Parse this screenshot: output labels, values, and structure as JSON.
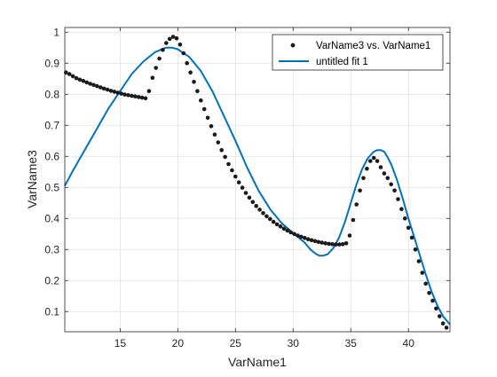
{
  "chart_data": {
    "type": "scatter",
    "title": "",
    "xlabel": "VarName1",
    "ylabel": "VarName3",
    "xlim": [
      10.2,
      43.6
    ],
    "ylim": [
      0.035,
      1.015
    ],
    "xticks": [
      "15",
      "20",
      "25",
      "30",
      "35",
      "40"
    ],
    "yticks": [
      "0.1",
      "0.2",
      "0.3",
      "0.4",
      "0.5",
      "0.6",
      "0.7",
      "0.8",
      "0.9",
      "1"
    ],
    "grid": true,
    "legend_position": "top-right",
    "colors": {
      "points": "#1a1a1a",
      "fit": "#0072BD",
      "grid": "#e0e0e0",
      "axis": "#262626"
    },
    "series": [
      {
        "name": "VarName3 vs. VarName1",
        "kind": "points",
        "x": [
          10.3,
          10.6,
          10.9,
          11.2,
          11.5,
          11.8,
          12.1,
          12.4,
          12.7,
          13.0,
          13.3,
          13.6,
          13.9,
          14.2,
          14.5,
          14.8,
          15.1,
          15.4,
          15.7,
          16.0,
          16.3,
          16.6,
          16.9,
          17.2,
          17.5,
          17.8,
          18.1,
          18.4,
          18.7,
          19.0,
          19.3,
          19.6,
          19.9,
          20.2,
          20.5,
          20.8,
          21.1,
          21.4,
          21.7,
          22.0,
          22.3,
          22.6,
          22.9,
          23.2,
          23.5,
          23.8,
          24.1,
          24.4,
          24.7,
          25.0,
          25.3,
          25.6,
          25.9,
          26.2,
          26.5,
          26.8,
          27.1,
          27.4,
          27.7,
          28.0,
          28.3,
          28.6,
          28.9,
          29.2,
          29.5,
          29.8,
          30.1,
          30.4,
          30.7,
          31.0,
          31.3,
          31.6,
          31.9,
          32.2,
          32.5,
          32.8,
          33.1,
          33.4,
          33.7,
          34.0,
          34.3,
          34.6,
          34.9,
          35.2,
          35.5,
          35.8,
          36.1,
          36.4,
          36.7,
          37.0,
          37.3,
          37.6,
          37.9,
          38.2,
          38.5,
          38.8,
          39.1,
          39.4,
          39.7,
          40.0,
          40.3,
          40.6,
          40.9,
          41.2,
          41.5,
          41.8,
          42.1,
          42.4,
          42.7,
          43.0,
          43.3
        ],
        "y": [
          0.87,
          0.865,
          0.858,
          0.852,
          0.847,
          0.843,
          0.838,
          0.834,
          0.83,
          0.826,
          0.822,
          0.818,
          0.815,
          0.811,
          0.808,
          0.805,
          0.802,
          0.799,
          0.797,
          0.795,
          0.793,
          0.791,
          0.789,
          0.787,
          0.81,
          0.853,
          0.885,
          0.915,
          0.943,
          0.965,
          0.978,
          0.985,
          0.98,
          0.96,
          0.932,
          0.9,
          0.87,
          0.84,
          0.81,
          0.78,
          0.752,
          0.724,
          0.697,
          0.67,
          0.645,
          0.62,
          0.598,
          0.575,
          0.555,
          0.535,
          0.516,
          0.499,
          0.482,
          0.467,
          0.453,
          0.44,
          0.428,
          0.417,
          0.407,
          0.398,
          0.389,
          0.381,
          0.374,
          0.367,
          0.361,
          0.355,
          0.35,
          0.345,
          0.341,
          0.337,
          0.333,
          0.33,
          0.327,
          0.324,
          0.322,
          0.32,
          0.318,
          0.317,
          0.316,
          0.316,
          0.317,
          0.32,
          0.345,
          0.395,
          0.445,
          0.49,
          0.53,
          0.56,
          0.585,
          0.595,
          0.585,
          0.565,
          0.545,
          0.53,
          0.51,
          0.49,
          0.462,
          0.43,
          0.4,
          0.37,
          0.338,
          0.3,
          0.262,
          0.225,
          0.19,
          0.16,
          0.135,
          0.11,
          0.085,
          0.062,
          0.048
        ]
      },
      {
        "name": "untitled fit 1",
        "kind": "line",
        "x": [
          10.2,
          11.0,
          12.0,
          13.0,
          14.0,
          15.0,
          16.0,
          17.0,
          18.0,
          18.5,
          19.0,
          19.5,
          20.0,
          21.0,
          22.0,
          23.0,
          24.0,
          25.0,
          26.0,
          27.0,
          28.0,
          29.0,
          30.0,
          31.0,
          31.5,
          32.0,
          32.3,
          32.6,
          33.0,
          33.5,
          34.0,
          34.5,
          35.0,
          35.5,
          36.0,
          36.5,
          37.0,
          37.3,
          37.6,
          37.9,
          38.2,
          38.5,
          39.0,
          39.5,
          40.0,
          40.5,
          41.0,
          41.5,
          42.0,
          42.5,
          43.0,
          43.6
        ],
        "y": [
          0.505,
          0.56,
          0.625,
          0.69,
          0.755,
          0.81,
          0.865,
          0.905,
          0.935,
          0.943,
          0.95,
          0.95,
          0.945,
          0.92,
          0.875,
          0.81,
          0.73,
          0.65,
          0.565,
          0.49,
          0.43,
          0.385,
          0.353,
          0.322,
          0.3,
          0.285,
          0.28,
          0.28,
          0.285,
          0.305,
          0.34,
          0.39,
          0.45,
          0.51,
          0.56,
          0.595,
          0.615,
          0.62,
          0.62,
          0.615,
          0.597,
          0.575,
          0.525,
          0.465,
          0.4,
          0.34,
          0.28,
          0.22,
          0.165,
          0.12,
          0.085,
          0.058
        ]
      }
    ]
  }
}
